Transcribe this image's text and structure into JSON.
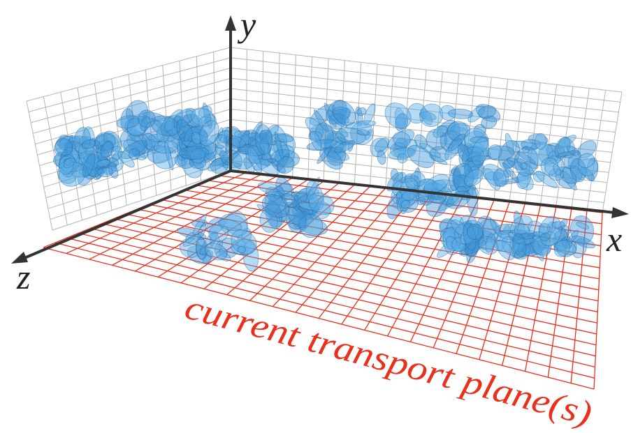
{
  "axes": {
    "y": "y",
    "x": "x",
    "z": "z"
  },
  "floor_label": "current transport plane(s)"
}
